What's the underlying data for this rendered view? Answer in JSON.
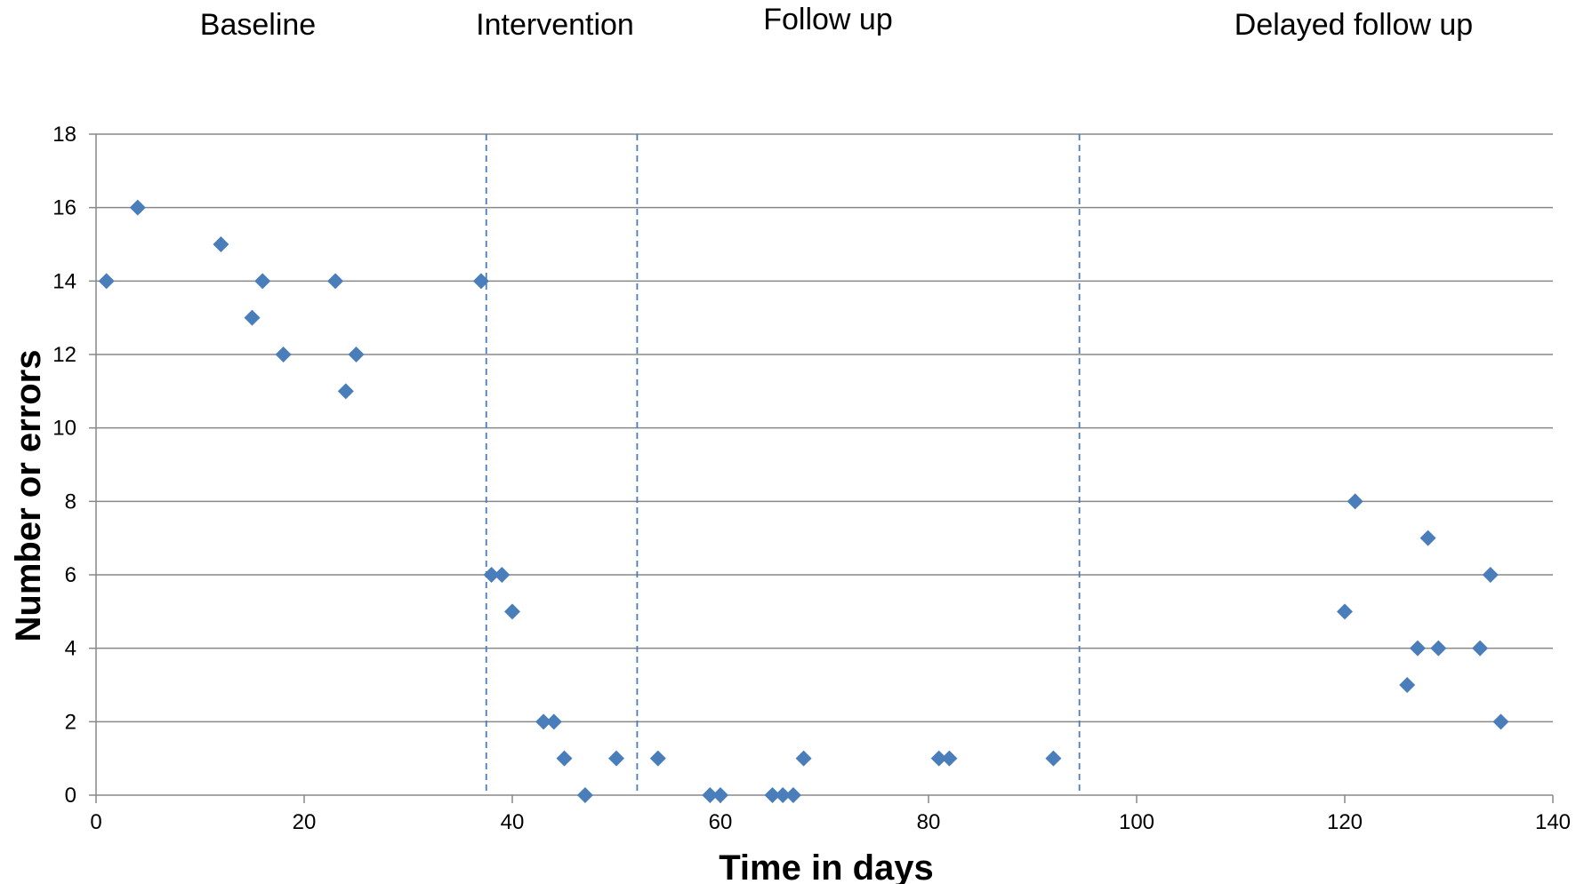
{
  "chart_data": {
    "type": "scatter",
    "xlabel": "Time in days",
    "ylabel": "Number or errors",
    "xlim": [
      0,
      140
    ],
    "ylim": [
      0,
      18
    ],
    "xticks": [
      0,
      20,
      40,
      60,
      80,
      100,
      120,
      140
    ],
    "yticks": [
      0,
      2,
      4,
      6,
      8,
      10,
      12,
      14,
      16,
      18
    ],
    "grid": "horizontal",
    "marker": "diamond",
    "marker_color": "#4a7ebb",
    "phase_boundaries_x": [
      37.5,
      52,
      94.5
    ],
    "phase_boundary_color": "#4a7ebb",
    "phases": [
      {
        "label": "Baseline"
      },
      {
        "label": "Intervention"
      },
      {
        "label": "Follow up"
      },
      {
        "label": "Delayed follow up"
      }
    ],
    "points": [
      {
        "x": 1,
        "y": 14
      },
      {
        "x": 4,
        "y": 16
      },
      {
        "x": 12,
        "y": 15
      },
      {
        "x": 15,
        "y": 13
      },
      {
        "x": 16,
        "y": 14
      },
      {
        "x": 18,
        "y": 12
      },
      {
        "x": 23,
        "y": 14
      },
      {
        "x": 24,
        "y": 11
      },
      {
        "x": 25,
        "y": 12
      },
      {
        "x": 37,
        "y": 14
      },
      {
        "x": 38,
        "y": 6
      },
      {
        "x": 39,
        "y": 6
      },
      {
        "x": 40,
        "y": 5
      },
      {
        "x": 43,
        "y": 2
      },
      {
        "x": 44,
        "y": 2
      },
      {
        "x": 45,
        "y": 1
      },
      {
        "x": 47,
        "y": 0
      },
      {
        "x": 50,
        "y": 1
      },
      {
        "x": 54,
        "y": 1
      },
      {
        "x": 59,
        "y": 0
      },
      {
        "x": 60,
        "y": 0
      },
      {
        "x": 65,
        "y": 0
      },
      {
        "x": 66,
        "y": 0
      },
      {
        "x": 67,
        "y": 0
      },
      {
        "x": 68,
        "y": 1
      },
      {
        "x": 81,
        "y": 1
      },
      {
        "x": 82,
        "y": 1
      },
      {
        "x": 92,
        "y": 1
      },
      {
        "x": 120,
        "y": 5
      },
      {
        "x": 121,
        "y": 8
      },
      {
        "x": 126,
        "y": 3
      },
      {
        "x": 127,
        "y": 4
      },
      {
        "x": 128,
        "y": 7
      },
      {
        "x": 129,
        "y": 4
      },
      {
        "x": 133,
        "y": 4
      },
      {
        "x": 134,
        "y": 6
      },
      {
        "x": 135,
        "y": 2
      }
    ]
  }
}
